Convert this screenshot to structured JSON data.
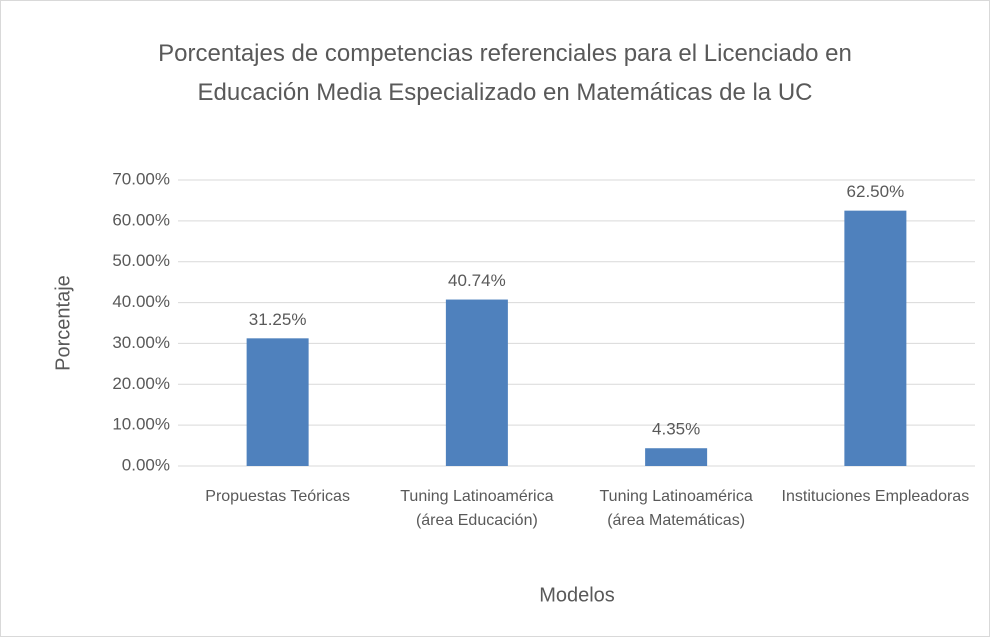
{
  "chart_data": {
    "type": "bar",
    "title": "Porcentajes de competencias referenciales para el Licenciado en Educación Media Especializado en Matemáticas de la UC",
    "x_label": "Modelos",
    "y_label": "Porcentaje",
    "categories": [
      "Propuestas Teóricas",
      "Tuning Latinoamérica (área Educación)",
      "Tuning Latinoamérica (área Matemáticas)",
      "Instituciones Empleadoras"
    ],
    "values": [
      31.25,
      40.74,
      4.35,
      62.5
    ],
    "value_labels": [
      "31.25%",
      "40.74%",
      "4.35%",
      "62.50%"
    ],
    "color": "#4f81bd",
    "ylim": [
      0,
      70
    ],
    "yticks": [
      {
        "value": 0,
        "label": "0.00%"
      },
      {
        "value": 10,
        "label": "10.00%"
      },
      {
        "value": 20,
        "label": "20.00%"
      },
      {
        "value": 30,
        "label": "30.00%"
      },
      {
        "value": 40,
        "label": "40.00%"
      },
      {
        "value": 50,
        "label": "50.00%"
      },
      {
        "value": 60,
        "label": "60.00%"
      },
      {
        "value": 70,
        "label": "70.00%"
      }
    ],
    "grid": true
  }
}
